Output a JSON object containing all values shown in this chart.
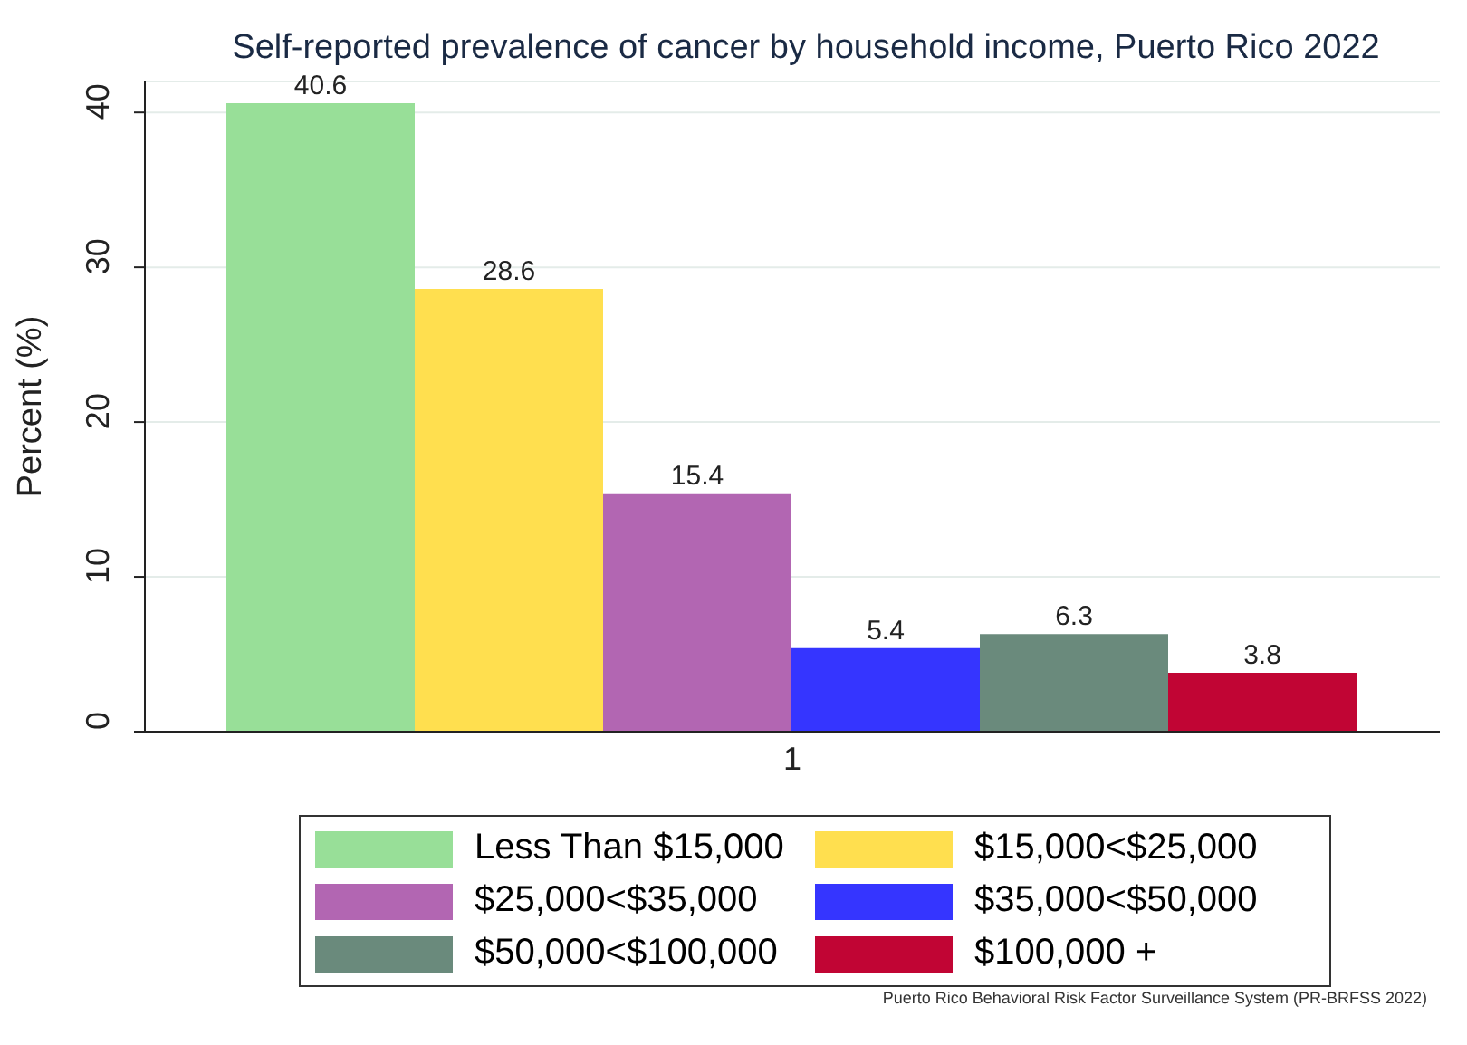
{
  "chart_data": {
    "type": "bar",
    "title": "Self-reported prevalence of cancer by household income, Puerto Rico 2022",
    "ylabel": "Percent (%)",
    "categories": [
      "1"
    ],
    "series": [
      {
        "name": "Less Than $15,000",
        "color": "#98df98",
        "values": [
          40.6
        ]
      },
      {
        "name": "$15,000<$25,000",
        "color": "#ffdf4f",
        "values": [
          28.6
        ]
      },
      {
        "name": "$25,000<$35,000",
        "color": "#b266b2",
        "values": [
          15.4
        ]
      },
      {
        "name": "$35,000<$50,000",
        "color": "#3535ff",
        "values": [
          5.4
        ]
      },
      {
        "name": "$50,000<$100,000",
        "color": "#6a8a7c",
        "values": [
          6.3
        ]
      },
      {
        "name": "$100,000 +",
        "color": "#c10534",
        "values": [
          3.8
        ]
      }
    ],
    "ylim": [
      0,
      42
    ],
    "yticks": [
      0,
      10,
      20,
      30,
      40
    ],
    "grid": "y",
    "data_labels": true,
    "legend": "bottom",
    "annotations": [
      "Puerto Rico Behavioral Risk Factor Surveillance System (PR-BRFSS 2022)"
    ]
  }
}
